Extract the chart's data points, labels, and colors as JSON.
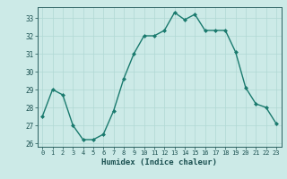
{
  "x": [
    0,
    1,
    2,
    3,
    4,
    5,
    6,
    7,
    8,
    9,
    10,
    11,
    12,
    13,
    14,
    15,
    16,
    17,
    18,
    19,
    20,
    21,
    22,
    23
  ],
  "y": [
    27.5,
    29.0,
    28.7,
    27.0,
    26.2,
    26.2,
    26.5,
    27.8,
    29.6,
    31.0,
    32.0,
    32.0,
    32.3,
    33.3,
    32.9,
    33.2,
    32.3,
    32.3,
    32.3,
    31.1,
    29.1,
    28.2,
    28.0,
    27.1
  ],
  "xlabel": "Humidex (Indice chaleur)",
  "ylabel": "",
  "title": "",
  "ylim": [
    25.8,
    33.6
  ],
  "xlim": [
    -0.5,
    23.5
  ],
  "yticks": [
    26,
    27,
    28,
    29,
    30,
    31,
    32,
    33
  ],
  "xticks": [
    0,
    1,
    2,
    3,
    4,
    5,
    6,
    7,
    8,
    9,
    10,
    11,
    12,
    13,
    14,
    15,
    16,
    17,
    18,
    19,
    20,
    21,
    22,
    23
  ],
  "line_color": "#1a7a6e",
  "marker_color": "#1a7a6e",
  "bg_color": "#cceae7",
  "grid_color": "#b0d8d4",
  "axis_color": "#2a6060",
  "text_color": "#1a5050"
}
